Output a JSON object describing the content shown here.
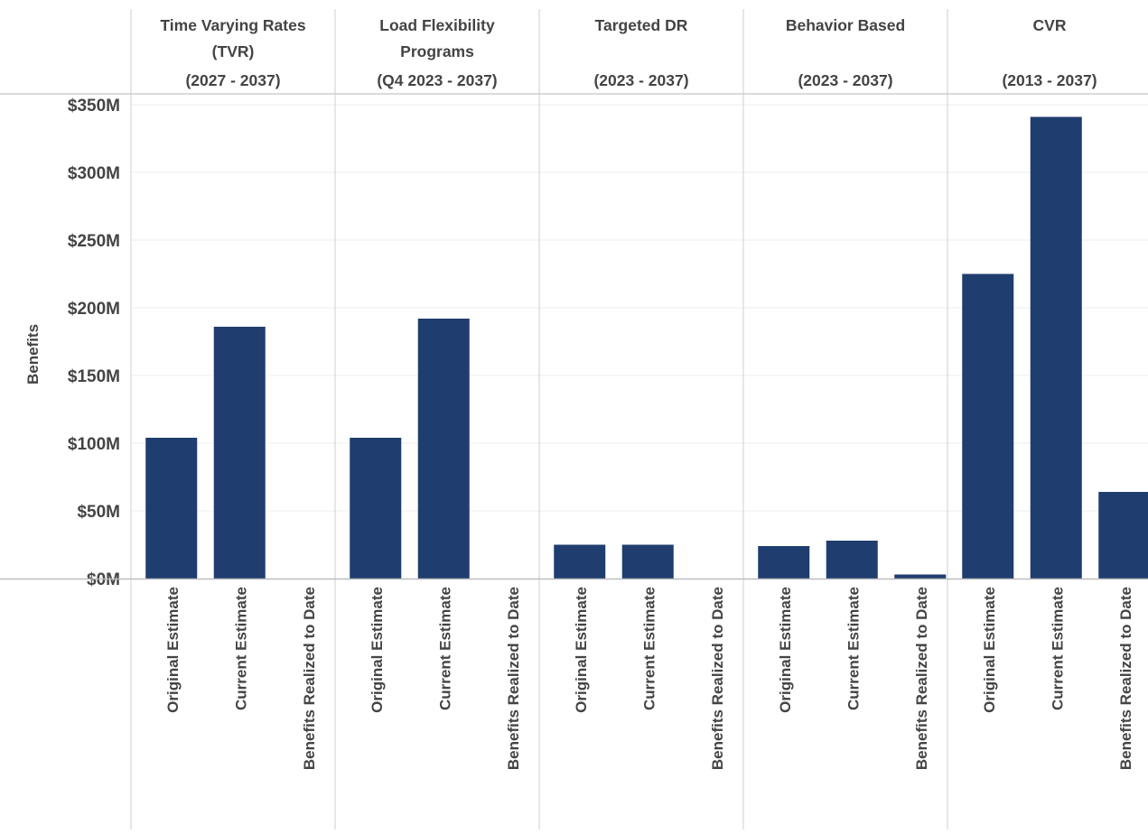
{
  "chart_data": {
    "type": "bar",
    "ylabel": "Benefits",
    "xlabel": "",
    "ylim": [
      0,
      350
    ],
    "yunit": "$M",
    "yticks": [
      0,
      50,
      100,
      150,
      200,
      250,
      300,
      350
    ],
    "ytick_labels": [
      "$0M",
      "$50M",
      "$100M",
      "$150M",
      "$200M",
      "$250M",
      "$300M",
      "$350M"
    ],
    "grid": true,
    "bar_color": "#1f3d6e",
    "categories": [
      "Original Estimate",
      "Current Estimate",
      "Benefits Realized to Date"
    ],
    "panels": [
      {
        "title_lines": [
          "Time Varying Rates",
          "(TVR)",
          "(2027 - 2037)"
        ],
        "values": [
          104,
          186,
          0
        ]
      },
      {
        "title_lines": [
          "Load Flexibility",
          "Programs",
          "(Q4 2023 - 2037)"
        ],
        "values": [
          104,
          192,
          0
        ]
      },
      {
        "title_lines": [
          "Targeted DR",
          "",
          "(2023 - 2037)"
        ],
        "values": [
          25,
          25,
          0
        ]
      },
      {
        "title_lines": [
          "Behavior Based",
          "",
          "(2023 - 2037)"
        ],
        "values": [
          24,
          28,
          3
        ]
      },
      {
        "title_lines": [
          "CVR",
          "",
          "(2013 - 2037)"
        ],
        "values": [
          225,
          341,
          64
        ]
      }
    ]
  }
}
